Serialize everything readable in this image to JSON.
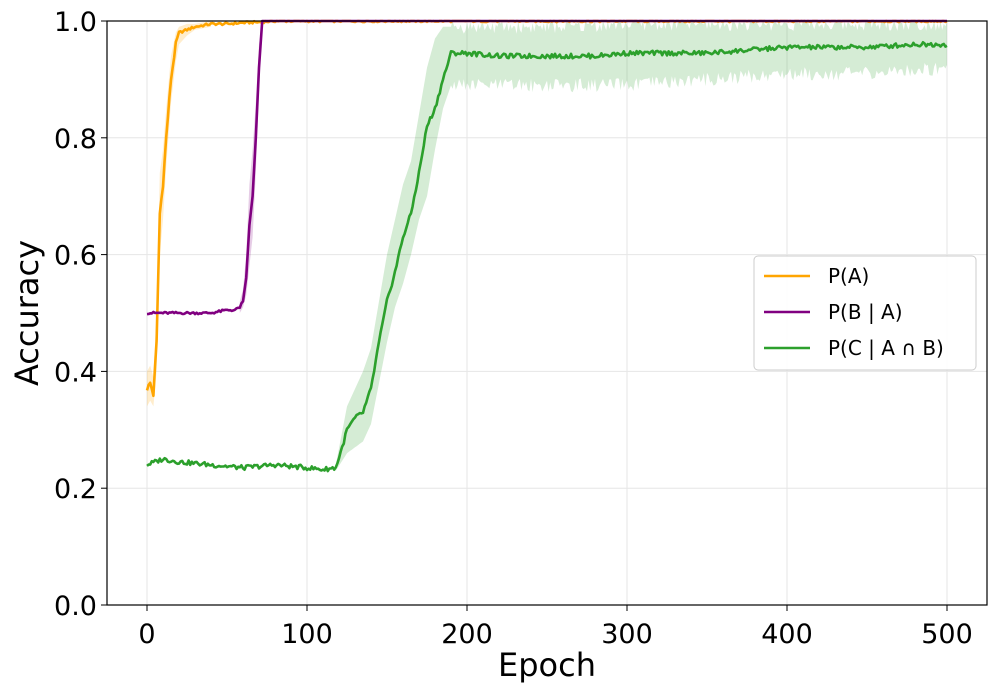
{
  "chart_data": {
    "type": "line",
    "title": "",
    "xlabel": "Epoch",
    "ylabel": "Accuracy",
    "xlim": [
      -25,
      525
    ],
    "ylim": [
      0.0,
      1.0
    ],
    "xticks": [
      0,
      100,
      200,
      300,
      400,
      500
    ],
    "xtick_labels": [
      "0",
      "100",
      "200",
      "300",
      "400",
      "500"
    ],
    "yticks": [
      0.0,
      0.2,
      0.4,
      0.6,
      0.8,
      1.0
    ],
    "ytick_labels": [
      "0.0",
      "0.2",
      "0.4",
      "0.6",
      "0.8",
      "1.0"
    ],
    "grid": true,
    "legend_position": "center-right",
    "shaded_band": "mean ± variation",
    "series": [
      {
        "name": "P(A)",
        "color": "#FFA500",
        "x": [
          0,
          2,
          4,
          6,
          8,
          10,
          12,
          15,
          18,
          20,
          25,
          30,
          40,
          50,
          60,
          70,
          80,
          100,
          150,
          200,
          300,
          400,
          500
        ],
        "y": [
          0.37,
          0.38,
          0.36,
          0.45,
          0.67,
          0.72,
          0.8,
          0.9,
          0.96,
          0.98,
          0.985,
          0.99,
          0.995,
          0.995,
          0.997,
          0.998,
          1.0,
          1.0,
          1.0,
          1.0,
          1.0,
          1.0,
          1.0
        ],
        "band_x": [
          0,
          2,
          4,
          6,
          8,
          10,
          12,
          15,
          18,
          20,
          25,
          30,
          40
        ],
        "band_lower": [
          0.34,
          0.35,
          0.34,
          0.4,
          0.6,
          0.66,
          0.75,
          0.86,
          0.93,
          0.96,
          0.975,
          0.985,
          0.99
        ],
        "band_upper": [
          0.4,
          0.41,
          0.39,
          0.5,
          0.74,
          0.78,
          0.85,
          0.94,
          0.98,
          0.99,
          0.995,
          0.995,
          1.0
        ]
      },
      {
        "name": "P(B | A)",
        "color": "#800080",
        "x": [
          0,
          10,
          20,
          30,
          40,
          50,
          55,
          58,
          60,
          62,
          64,
          66,
          68,
          70,
          72,
          75,
          80,
          100,
          150,
          200,
          300,
          400,
          500
        ],
        "y": [
          0.5,
          0.5,
          0.5,
          0.5,
          0.5,
          0.505,
          0.505,
          0.51,
          0.52,
          0.56,
          0.65,
          0.7,
          0.8,
          0.92,
          1.0,
          1.0,
          1.0,
          1.0,
          1.0,
          1.0,
          1.0,
          1.0,
          1.0
        ],
        "band_x": [
          58,
          60,
          62,
          64,
          66,
          68,
          70,
          72
        ],
        "band_lower": [
          0.5,
          0.51,
          0.53,
          0.58,
          0.63,
          0.74,
          0.88,
          0.99
        ],
        "band_upper": [
          0.52,
          0.54,
          0.6,
          0.72,
          0.78,
          0.86,
          0.96,
          1.0
        ]
      },
      {
        "name": "P(C | A ∩ B)",
        "color": "#2CA02C",
        "x": [
          0,
          10,
          20,
          40,
          60,
          80,
          100,
          110,
          118,
          122,
          125,
          130,
          135,
          140,
          145,
          150,
          155,
          160,
          165,
          170,
          175,
          180,
          185,
          190,
          200,
          220,
          250,
          280,
          300,
          350,
          400,
          450,
          480,
          500
        ],
        "y": [
          0.24,
          0.25,
          0.245,
          0.24,
          0.235,
          0.24,
          0.235,
          0.232,
          0.235,
          0.27,
          0.3,
          0.32,
          0.33,
          0.37,
          0.45,
          0.52,
          0.57,
          0.63,
          0.67,
          0.74,
          0.82,
          0.85,
          0.9,
          0.945,
          0.945,
          0.94,
          0.94,
          0.94,
          0.945,
          0.945,
          0.955,
          0.955,
          0.96,
          0.96
        ],
        "band_x": [
          118,
          125,
          130,
          135,
          140,
          145,
          150,
          155,
          160,
          165,
          170,
          175,
          180,
          185,
          190,
          200,
          250,
          300,
          350,
          400,
          450,
          500
        ],
        "band_lower": [
          0.23,
          0.26,
          0.27,
          0.28,
          0.31,
          0.38,
          0.45,
          0.51,
          0.55,
          0.6,
          0.66,
          0.7,
          0.78,
          0.85,
          0.89,
          0.89,
          0.89,
          0.89,
          0.9,
          0.91,
          0.91,
          0.92
        ],
        "band_upper": [
          0.24,
          0.34,
          0.37,
          0.4,
          0.44,
          0.52,
          0.6,
          0.66,
          0.72,
          0.76,
          0.84,
          0.92,
          0.97,
          0.99,
          0.99,
          0.99,
          0.99,
          0.995,
          0.995,
          0.995,
          0.995,
          0.995
        ]
      }
    ]
  }
}
